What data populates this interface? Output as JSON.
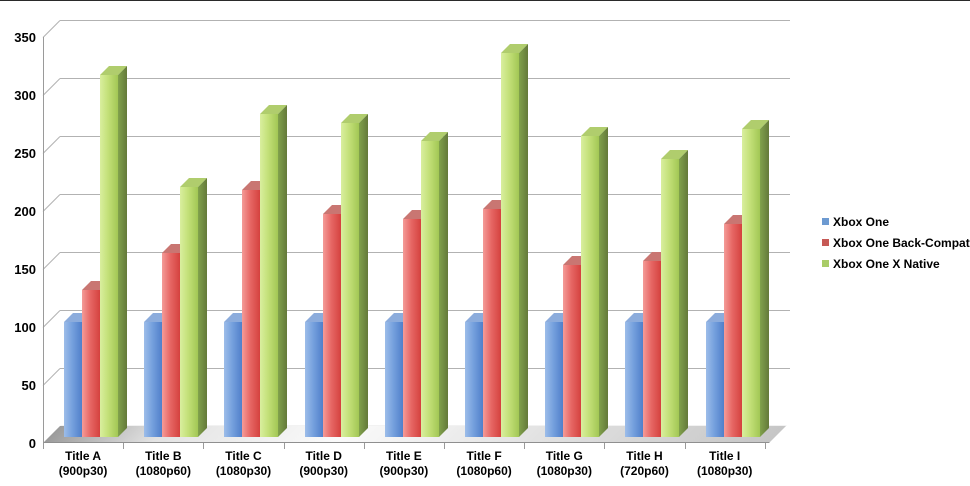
{
  "chart_data": {
    "type": "bar",
    "style": "3d-clustered-column",
    "title": "",
    "categories": [
      "Title A",
      "Title B",
      "Title C",
      "Title D",
      "Title E",
      "Title F",
      "Title G",
      "Title H",
      "Title I"
    ],
    "category_sublabels": [
      "(900p30)",
      "(1080p60)",
      "(1080p30)",
      "(900p30)",
      "(900p30)",
      "(1080p60)",
      "(1080p30)",
      "(720p60)",
      "(1080p30)"
    ],
    "series": [
      {
        "name": "Xbox One",
        "color": "#6d9ad1",
        "values": [
          100,
          100,
          100,
          100,
          100,
          100,
          100,
          100,
          100
        ]
      },
      {
        "name": "Xbox One Back-Compat",
        "color": "#c65955",
        "values": [
          128,
          160,
          215,
          194,
          190,
          198,
          150,
          153,
          185
        ]
      },
      {
        "name": "Xbox One X Native",
        "color": "#a9cc67",
        "values": [
          315,
          217,
          281,
          273,
          257,
          334,
          262,
          242,
          268
        ]
      }
    ],
    "y_axis": {
      "min": 0,
      "max": 350,
      "step": 50,
      "ticks": [
        "0",
        "50",
        "100",
        "150",
        "200",
        "250",
        "300",
        "350"
      ]
    },
    "grid": true,
    "legend_position": "right",
    "xlabel": "",
    "ylabel": ""
  },
  "colors": {
    "background": "#ffffff",
    "gridline": "#b2b2b2",
    "axis": "#9a9a9a",
    "text": "#000000"
  }
}
